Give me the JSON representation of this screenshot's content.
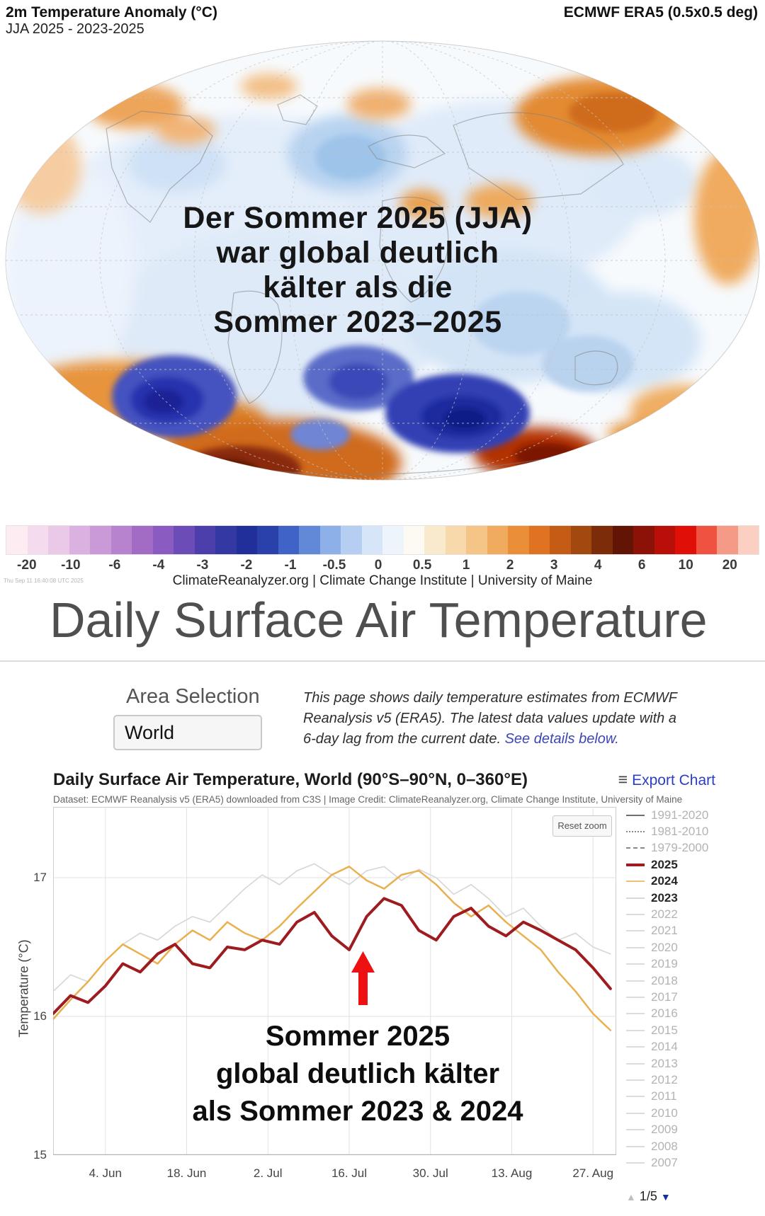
{
  "map_panel": {
    "title": "2m Temperature Anomaly (°C)",
    "subtitle": "JJA 2025 - 2023-2025",
    "source": "ECMWF ERA5 (0.5x0.5 deg)",
    "overlay_lines": [
      "Der Sommer 2025 (JJA)",
      "war global deutlich",
      "kälter als die",
      "Sommer 2023–2025"
    ],
    "timestamp": "Thu Sep 11 16:40:08 UTC 2025",
    "attribution": "ClimateReanalyzer.org | Climate Change Institute | University of Maine",
    "colorbar": {
      "ticks": [
        "-20",
        "-10",
        "-6",
        "-4",
        "-3",
        "-2",
        "-1",
        "-0.5",
        "0",
        "0.5",
        "1",
        "2",
        "3",
        "4",
        "6",
        "10",
        "20"
      ],
      "colors": [
        "#fdecf2",
        "#f5dbee",
        "#e9c8e8",
        "#dab1e0",
        "#c99ad7",
        "#b783ce",
        "#a26cc5",
        "#8a5bc1",
        "#6c4db8",
        "#4c3fac",
        "#3338a2",
        "#212f9a",
        "#2a41ac",
        "#3f63c6",
        "#6189d8",
        "#8db0e8",
        "#b5cef2",
        "#d6e5f8",
        "#edf4fc",
        "#fdfaf4",
        "#faeacd",
        "#f7d9ab",
        "#f4c586",
        "#f0ab5e",
        "#ea8f38",
        "#df7322",
        "#c55c16",
        "#a1490f",
        "#7c2c08",
        "#621505",
        "#8c1208",
        "#b80f08",
        "#e01008",
        "#ef5240",
        "#f49a86",
        "#fbd0c2"
      ]
    }
  },
  "page": {
    "heading": "Daily Surface Air Temperature",
    "area_selection_label": "Area Selection",
    "area_value": "World",
    "description_plain": "This page shows daily temperature estimates from ECMWF Reanalysis v5 (ERA5). The latest data values update with a 6-day lag from the current date. ",
    "description_link": "See details below."
  },
  "chart": {
    "title": "Daily Surface Air Temperature, World (90°S–90°N, 0–360°E)",
    "export_label": "Export Chart",
    "burger_icon": "≡",
    "dataset_credit": "Dataset: ECMWF Reanalysis v5 (ERA5) downloaded from C3S | Image Credit: ClimateReanalyzer.org, Climate Change Institute, University of Maine",
    "reset_zoom": "Reset zoom",
    "ylabel": "Temperature (°C)",
    "y_ticks": [
      "17",
      "16",
      "15"
    ],
    "legend": [
      {
        "label": "1991-2020",
        "line": "solid",
        "color": "#6f6f6f",
        "emph": false
      },
      {
        "label": "1981-2010",
        "line": "dashdot",
        "color": "#8a8a8a",
        "emph": false
      },
      {
        "label": "1979-2000",
        "line": "dashed",
        "color": "#8a8a8a",
        "emph": false
      },
      {
        "label": "2025",
        "line": "solid-thick",
        "color": "#9e1b20",
        "emph": true
      },
      {
        "label": "2024",
        "line": "solid",
        "color": "#ecc076",
        "emph": true
      },
      {
        "label": "2023",
        "line": "solid",
        "color": "#d8d8d8",
        "emph": true
      },
      {
        "label": "2022",
        "line": "solid",
        "color": "#dcdcdc",
        "emph": false
      },
      {
        "label": "2021",
        "line": "solid",
        "color": "#dcdcdc",
        "emph": false
      },
      {
        "label": "2020",
        "line": "solid",
        "color": "#dcdcdc",
        "emph": false
      },
      {
        "label": "2019",
        "line": "solid",
        "color": "#dcdcdc",
        "emph": false
      },
      {
        "label": "2018",
        "line": "solid",
        "color": "#dcdcdc",
        "emph": false
      },
      {
        "label": "2017",
        "line": "solid",
        "color": "#dcdcdc",
        "emph": false
      },
      {
        "label": "2016",
        "line": "solid",
        "color": "#dcdcdc",
        "emph": false
      },
      {
        "label": "2015",
        "line": "solid",
        "color": "#dcdcdc",
        "emph": false
      },
      {
        "label": "2014",
        "line": "solid",
        "color": "#dcdcdc",
        "emph": false
      },
      {
        "label": "2013",
        "line": "solid",
        "color": "#dcdcdc",
        "emph": false
      },
      {
        "label": "2012",
        "line": "solid",
        "color": "#dcdcdc",
        "emph": false
      },
      {
        "label": "2011",
        "line": "solid",
        "color": "#dcdcdc",
        "emph": false
      },
      {
        "label": "2010",
        "line": "solid",
        "color": "#dcdcdc",
        "emph": false
      },
      {
        "label": "2009",
        "line": "solid",
        "color": "#dcdcdc",
        "emph": false
      },
      {
        "label": "2008",
        "line": "solid",
        "color": "#dcdcdc",
        "emph": false
      },
      {
        "label": "2007",
        "line": "solid",
        "color": "#dcdcdc",
        "emph": false
      }
    ],
    "pagination": "1/5",
    "pagination_up": "▲",
    "pagination_down": "▼",
    "annotation_lines": [
      "Sommer 2025",
      "global deutlich kälter",
      "als Sommer 2023 & 2024"
    ]
  },
  "chart_data": [
    {
      "type": "heatmap",
      "title": "2m Temperature Anomaly (°C)",
      "subtitle": "JJA 2025 - 2023-2025",
      "source": "ECMWF ERA5 (0.5x0.5 deg)",
      "units": "°C",
      "colorbar_ticks": [
        -20,
        -10,
        -6,
        -4,
        -3,
        -2,
        -1,
        -0.5,
        0,
        0.5,
        1,
        2,
        3,
        4,
        6,
        10,
        20
      ],
      "description": "World map of 2m temperature anomaly, JJA 2025 minus mean of summers 2023-2025; broad light-blue (cool) anomalies over most continents and oceans, orange warm patches over eastern Siberia, northwest Africa edge, South Atlantic and parts of Antarctica, dark blue cold pools and dark red warm pools around the Southern Ocean / Antarctica"
    },
    {
      "type": "line",
      "title": "Daily Surface Air Temperature, World (90°S–90°N, 0–360°E)",
      "xlabel": "",
      "ylabel": "Temperature (°C)",
      "ylim": [
        15,
        17.51
      ],
      "y_gridlines": [
        16,
        17
      ],
      "x_domain_days": [
        0,
        97
      ],
      "x_tick_days": [
        9,
        23,
        37,
        51,
        65,
        79,
        93
      ],
      "x_tick_labels": [
        "4. Jun",
        "18. Jun",
        "2. Jul",
        "16. Jul",
        "30. Jul",
        "13. Aug",
        "27. Aug"
      ],
      "days": [
        0,
        3,
        6,
        9,
        12,
        15,
        18,
        21,
        24,
        27,
        30,
        33,
        36,
        39,
        42,
        45,
        48,
        51,
        54,
        57,
        60,
        63,
        66,
        69,
        72,
        75,
        78,
        81,
        84,
        87,
        90,
        93,
        96
      ],
      "series": [
        {
          "name": "2023",
          "color": "#d8d8d8",
          "width": 1.7,
          "values": [
            16.18,
            16.3,
            16.25,
            16.4,
            16.52,
            16.6,
            16.55,
            16.65,
            16.72,
            16.68,
            16.8,
            16.92,
            17.02,
            16.95,
            17.05,
            17.1,
            17.02,
            16.95,
            17.05,
            17.08,
            16.98,
            17.06,
            17.0,
            16.88,
            16.95,
            16.85,
            16.72,
            16.78,
            16.65,
            16.55,
            16.6,
            16.5,
            16.45
          ]
        },
        {
          "name": "2024",
          "color": "#e9b04f",
          "width": 2.5,
          "values": [
            15.98,
            16.12,
            16.25,
            16.4,
            16.52,
            16.45,
            16.38,
            16.52,
            16.62,
            16.55,
            16.68,
            16.6,
            16.55,
            16.65,
            16.78,
            16.9,
            17.02,
            17.08,
            16.98,
            16.92,
            17.02,
            17.05,
            16.95,
            16.82,
            16.72,
            16.8,
            16.68,
            16.58,
            16.48,
            16.32,
            16.18,
            16.02,
            15.9
          ]
        },
        {
          "name": "2025",
          "color": "#9e1b20",
          "width": 4,
          "values": [
            16.02,
            16.15,
            16.1,
            16.22,
            16.38,
            16.32,
            16.45,
            16.52,
            16.38,
            16.35,
            16.5,
            16.48,
            16.55,
            16.52,
            16.68,
            16.75,
            16.58,
            16.48,
            16.72,
            16.85,
            16.8,
            16.62,
            16.55,
            16.72,
            16.78,
            16.65,
            16.58,
            16.68,
            16.62,
            16.55,
            16.48,
            16.35,
            16.2
          ]
        }
      ],
      "legend_position": "right",
      "grid": true
    }
  ]
}
